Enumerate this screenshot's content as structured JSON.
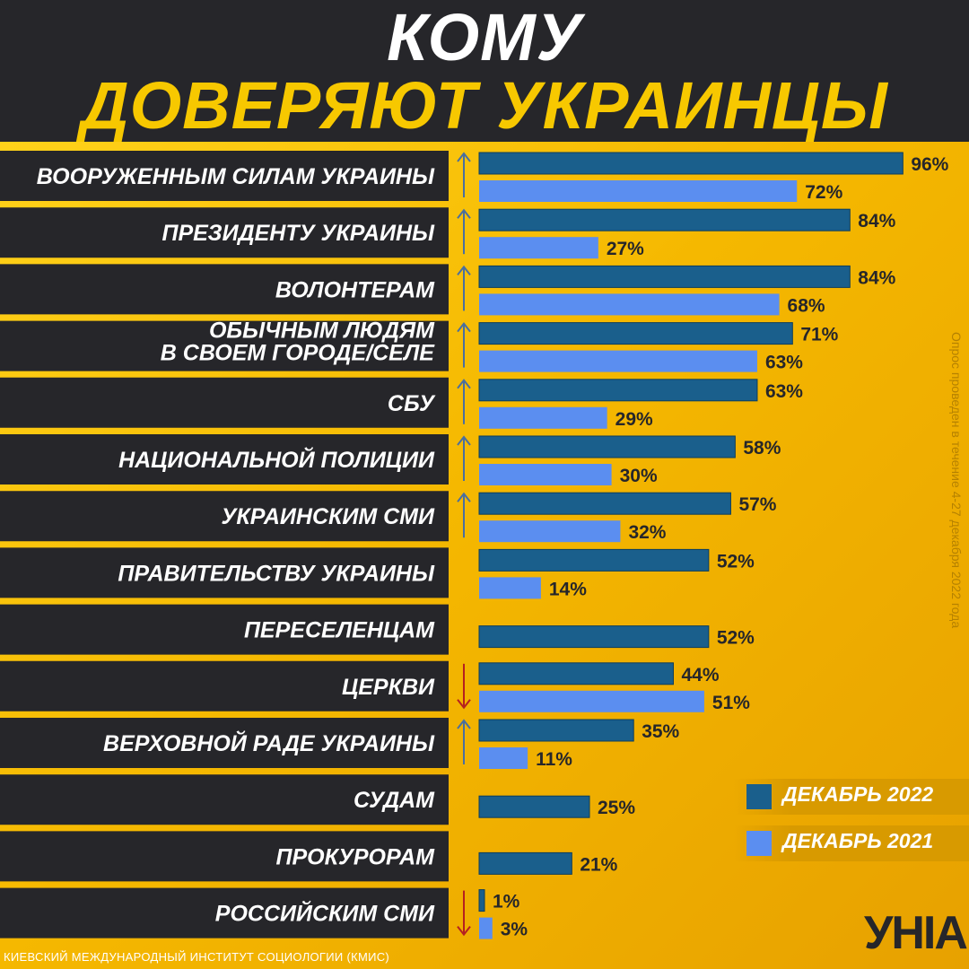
{
  "header": {
    "title_line1": "КОМУ",
    "title_line2": "ДОВЕРЯЮТ УКРАИНЦЫ"
  },
  "colors": {
    "header_bg": "#26262a",
    "background": "#f1b400",
    "dec_2022": "#1a5f8c",
    "dec_2021": "#5b8ef0",
    "arrow_up": "#4a6fa0",
    "arrow_down": "#b52020"
  },
  "chart_data": {
    "type": "bar",
    "orientation": "horizontal",
    "title": "КОМУ ДОВЕРЯЮТ УКРАИНЦЫ",
    "xlim": [
      0,
      100
    ],
    "unit": "%",
    "grid": false,
    "legend_position": "bottom-right",
    "categories": [
      [
        "ВООРУЖЕННЫМ СИЛАМ УКРАИНЫ"
      ],
      [
        "ПРЕЗИДЕНТУ УКРАИНЫ"
      ],
      [
        "ВОЛОНТЕРАМ"
      ],
      [
        "ОБЫЧНЫМ ЛЮДЯМ",
        "В СВОЕМ ГОРОДЕ/СЕЛЕ"
      ],
      [
        "СБУ"
      ],
      [
        "НАЦИОНАЛЬНОЙ ПОЛИЦИИ"
      ],
      [
        "УКРАИНСКИМ СМИ"
      ],
      [
        "ПРАВИТЕЛЬСТВУ УКРАИНЫ"
      ],
      [
        "ПЕРЕСЕЛЕНЦАМ"
      ],
      [
        "ЦЕРКВИ"
      ],
      [
        "ВЕРХОВНОЙ РАДЕ УКРАИНЫ"
      ],
      [
        "СУДАМ"
      ],
      [
        "ПРОКУРОРАМ"
      ],
      [
        "РОССИЙСКИМ СМИ"
      ]
    ],
    "trend": [
      "up",
      "up",
      "up",
      "up",
      "up",
      "up",
      "up",
      "none",
      "none",
      "down",
      "up",
      "none",
      "none",
      "down"
    ],
    "series": [
      {
        "name": "ДЕКАБРЬ 2022",
        "values": [
          96,
          84,
          84,
          71,
          63,
          58,
          57,
          52,
          52,
          44,
          35,
          25,
          21,
          1
        ],
        "labels": [
          "96%",
          "84%",
          "84%",
          "71%",
          "63%",
          "58%",
          "57%",
          "52%",
          "52%",
          "44%",
          "35%",
          "25%",
          "21%",
          "1%"
        ]
      },
      {
        "name": "ДЕКАБРЬ 2021",
        "values": [
          72,
          27,
          68,
          63,
          29,
          30,
          32,
          14,
          null,
          51,
          11,
          null,
          null,
          3
        ],
        "labels": [
          "72%",
          "27%",
          "68%",
          "63%",
          "29%",
          "30%",
          "32%",
          "14%",
          null,
          "51%",
          "11%",
          null,
          null,
          "3%"
        ]
      }
    ]
  },
  "legend": {
    "item_2022": "ДЕКАБРЬ 2022",
    "item_2021": "ДЕКАБРЬ 2021"
  },
  "side_note": "Опрос проведен в течение 4-27 декабря 2022 года",
  "source": "КИЕВСКИЙ МЕЖДУНАРОДНЫЙ ИНСТИТУТ СОЦИОЛОГИИ (КМИС)",
  "logo": "УНІАН"
}
